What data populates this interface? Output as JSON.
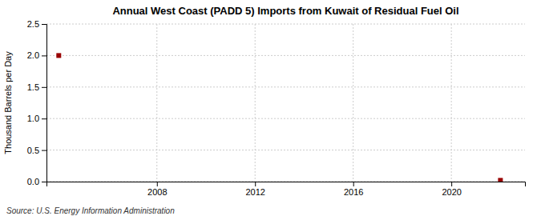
{
  "chart_data": {
    "type": "scatter",
    "title": "Annual West Coast (PADD 5) Imports from Kuwait of Residual Fuel Oil",
    "ylabel": "Thousand Barrels per Day",
    "source": "Source: U.S. Energy Information Administration",
    "x": [
      2004,
      2022
    ],
    "values": [
      2.0,
      0.02
    ],
    "color": "#990000",
    "marker": "square",
    "xlim": [
      2003.5,
      2023.0
    ],
    "ylim": [
      0.0,
      2.5
    ],
    "xticks": [
      2008,
      2012,
      2016,
      2020
    ],
    "yticks": [
      {
        "value": 0.0,
        "label": "0.0"
      },
      0.5,
      {
        "value": 1.0,
        "label": "1.0"
      },
      1.5,
      {
        "value": 2.0,
        "label": "2.0"
      },
      2.5
    ],
    "grid": true
  }
}
